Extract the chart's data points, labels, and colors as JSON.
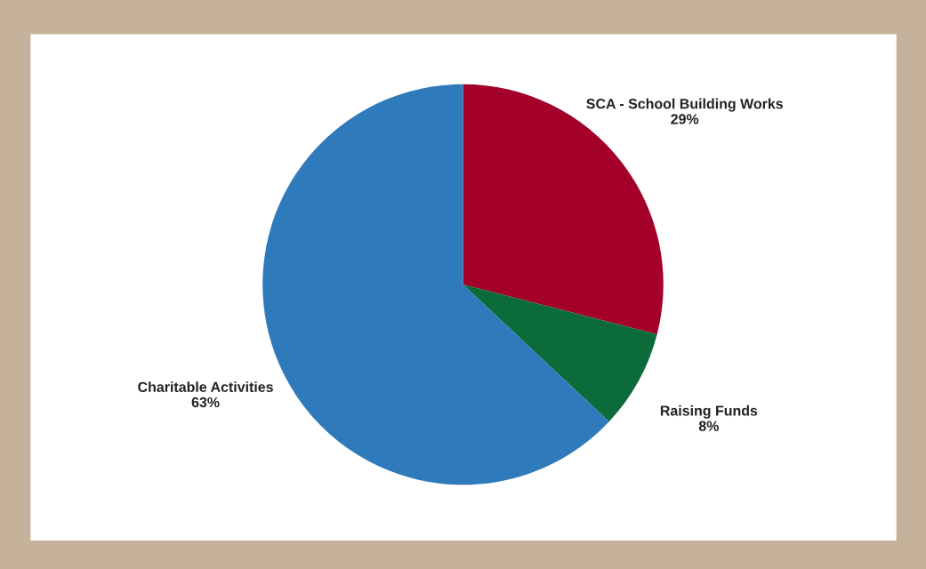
{
  "chart_data": {
    "type": "pie",
    "categories": [
      "SCA - School Building Works",
      "Raising Funds",
      "Charitable Activities"
    ],
    "values": [
      29,
      8,
      63
    ],
    "value_labels": [
      "29%",
      "8%",
      "63%"
    ],
    "colors": [
      "#a3002a",
      "#0b6b3a",
      "#2f7abb"
    ],
    "legend": false
  }
}
